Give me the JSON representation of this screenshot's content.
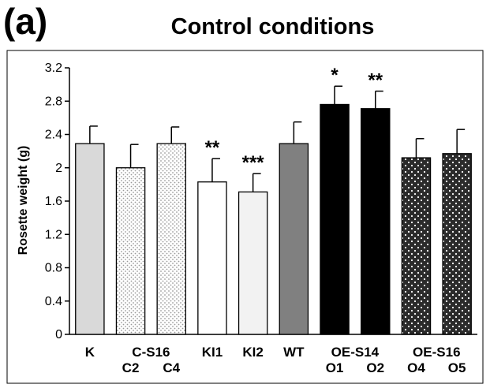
{
  "panel_label": "(a)",
  "chart_data": {
    "type": "bar",
    "title": "Control conditions",
    "xlabel": "",
    "ylabel": "Rosette weight (g)",
    "ylim": [
      0,
      3.2
    ],
    "yticks": [
      "0",
      "0.4",
      "0.8",
      "1.2",
      "1.6",
      "2",
      "2.4",
      "2.8",
      "3.2"
    ],
    "grid": false,
    "legend": "none",
    "categories": [
      "K",
      "C2",
      "C4",
      "KI1",
      "KI2",
      "WT",
      "O1",
      "O2",
      "O4",
      "O5"
    ],
    "values": [
      2.29,
      2.0,
      2.29,
      1.83,
      1.71,
      2.29,
      2.76,
      2.71,
      2.12,
      2.17
    ],
    "errors": [
      0.21,
      0.28,
      0.2,
      0.28,
      0.22,
      0.26,
      0.22,
      0.21,
      0.23,
      0.29
    ],
    "significance": [
      "",
      "",
      "",
      "**",
      "***",
      "",
      "*",
      "**",
      "",
      ""
    ],
    "fills": [
      "light-gray",
      "dotted-light",
      "dotted-light",
      "white",
      "very-light-gray",
      "dark-gray",
      "black",
      "black",
      "dark-dotted",
      "dark-dotted"
    ],
    "colors": {
      "light_gray": "#d9d9d9",
      "dark_gray": "#808080",
      "black": "#000000",
      "dark_dotted": "#2b2b2b",
      "very_light_gray": "#f2f2f2"
    },
    "group_labels": [
      {
        "text": "K",
        "bars": [
          0
        ]
      },
      {
        "text": "C-S16",
        "bars": [
          1,
          2
        ]
      },
      {
        "text": "KI1",
        "bars": [
          3
        ]
      },
      {
        "text": "KI2",
        "bars": [
          4
        ]
      },
      {
        "text": "WT",
        "bars": [
          5
        ]
      },
      {
        "text": "OE-S14",
        "bars": [
          6,
          7
        ]
      },
      {
        "text": "OE-S16",
        "bars": [
          8,
          9
        ]
      }
    ],
    "sub_labels": [
      {
        "text": "C2",
        "bar": 1
      },
      {
        "text": "C4",
        "bar": 2
      },
      {
        "text": "O1",
        "bar": 6
      },
      {
        "text": "O2",
        "bar": 7
      },
      {
        "text": "O4",
        "bar": 8
      },
      {
        "text": "O5",
        "bar": 9
      }
    ]
  }
}
